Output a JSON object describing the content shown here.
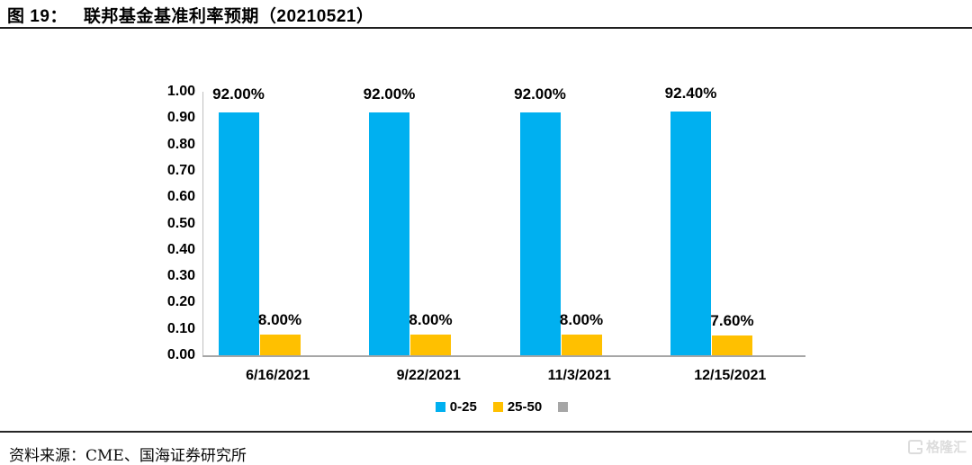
{
  "figure": {
    "label": "图 19：",
    "title": "联邦基金基准利率预期（20210521）"
  },
  "chart_data": {
    "type": "bar",
    "title": "联邦基金基准利率预期（20210521）",
    "categories": [
      "6/16/2021",
      "9/22/2021",
      "11/3/2021",
      "12/15/2021"
    ],
    "series": [
      {
        "name": "0-25",
        "color": "#00B0F0",
        "values": [
          0.92,
          0.92,
          0.92,
          0.924
        ],
        "labels": [
          "92.00%",
          "92.00%",
          "92.00%",
          "92.40%"
        ]
      },
      {
        "name": "25-50",
        "color": "#FFC000",
        "values": [
          0.08,
          0.08,
          0.08,
          0.076
        ],
        "labels": [
          "8.00%",
          "8.00%",
          "8.00%",
          "7.60%"
        ]
      },
      {
        "name": "",
        "color": "#A6A6A6",
        "values": [
          0,
          0,
          0,
          0
        ],
        "labels": [
          "",
          "",
          "",
          ""
        ]
      }
    ],
    "ylim": [
      0,
      1.0
    ],
    "ytick_step": 0.1,
    "ytick_labels": [
      "0.00",
      "0.10",
      "0.20",
      "0.30",
      "0.40",
      "0.50",
      "0.60",
      "0.70",
      "0.80",
      "0.90",
      "1.00"
    ],
    "grid": false,
    "legend_position": "bottom",
    "axis_color": "#BFBFBF",
    "baseline_color": "#A6A6A6",
    "label_color": "#000000"
  },
  "footer": {
    "source_text": "资料来源：CME、国海证券研究所"
  },
  "watermark": {
    "text": "格隆汇"
  }
}
